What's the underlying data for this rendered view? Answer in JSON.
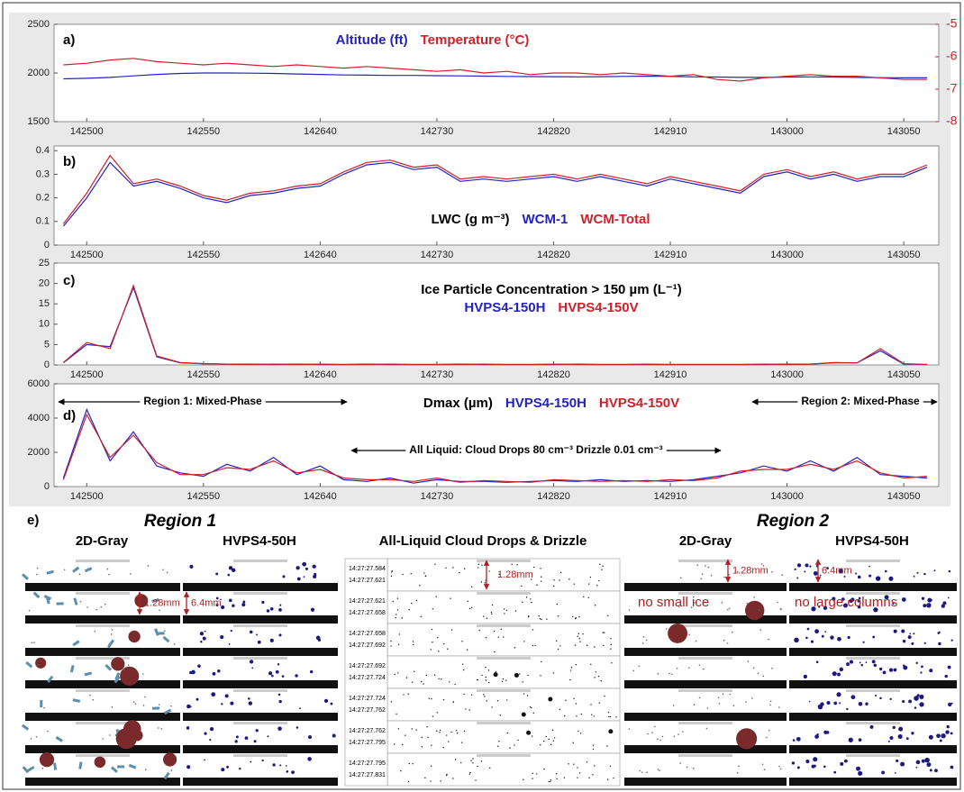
{
  "chart_data": [
    {
      "type": "line",
      "label": "a)",
      "x": [
        51890,
        51900,
        51910,
        51920,
        51930,
        51940,
        51950,
        51960,
        51970,
        51980,
        51990,
        52000,
        52010,
        52020,
        52030,
        52040,
        52050,
        52060,
        52070,
        52080,
        52090,
        52100,
        52110,
        52120,
        52130,
        52140,
        52150,
        52160,
        52170,
        52180,
        52190,
        52200,
        52210,
        52220,
        52230,
        52240,
        52250,
        52260
      ],
      "xlim": [
        51886,
        52265
      ],
      "xticks": [
        {
          "value": 51900,
          "label": "142500"
        },
        {
          "value": 51950,
          "label": "142550"
        },
        {
          "value": 52000,
          "label": "142640"
        },
        {
          "value": 52050,
          "label": "142730"
        },
        {
          "value": 52100,
          "label": "142820"
        },
        {
          "value": 52150,
          "label": "142910"
        },
        {
          "value": 52200,
          "label": "143000"
        },
        {
          "value": 52250,
          "label": "143050"
        }
      ],
      "ylim": [
        1500,
        2500
      ],
      "yticks": [
        1500,
        2000,
        2500
      ],
      "y2lim": [
        -8,
        -5
      ],
      "y2ticks": [
        -8,
        -7,
        -6,
        -5
      ],
      "y2color": "#d0202a",
      "series": [
        {
          "name": "Altitude (ft)",
          "color": "#2323c4",
          "values": [
            1940,
            1945,
            1955,
            1970,
            1985,
            1995,
            2000,
            2000,
            1998,
            1995,
            1990,
            1985,
            1980,
            1978,
            1975,
            1975,
            1972,
            1970,
            1968,
            1965,
            1963,
            1962,
            1960,
            1962,
            1965,
            1968,
            1965,
            1960,
            1958,
            1955,
            1955,
            1958,
            1960,
            1958,
            1955,
            1952,
            1950,
            1950
          ]
        },
        {
          "name": "Temperature (°C)",
          "color": "#d0202a",
          "axis": "y2",
          "values": [
            -6.25,
            -6.2,
            -6.1,
            -6.05,
            -6.15,
            -6.2,
            -6.25,
            -6.2,
            -6.25,
            -6.3,
            -6.25,
            -6.3,
            -6.35,
            -6.3,
            -6.35,
            -6.4,
            -6.45,
            -6.4,
            -6.5,
            -6.45,
            -6.55,
            -6.5,
            -6.5,
            -6.55,
            -6.5,
            -6.55,
            -6.6,
            -6.55,
            -6.7,
            -6.75,
            -6.65,
            -6.6,
            -6.55,
            -6.6,
            -6.6,
            -6.65,
            -6.7,
            -6.7
          ]
        }
      ]
    },
    {
      "type": "line",
      "label": "b)",
      "legend_title": "LWC (g m⁻³)",
      "x": [
        51890,
        51900,
        51910,
        51920,
        51930,
        51940,
        51950,
        51960,
        51970,
        51980,
        51990,
        52000,
        52010,
        52020,
        52030,
        52040,
        52050,
        52060,
        52070,
        52080,
        52090,
        52100,
        52110,
        52120,
        52130,
        52140,
        52150,
        52160,
        52170,
        52180,
        52190,
        52200,
        52210,
        52220,
        52230,
        52240,
        52250,
        52260
      ],
      "xlim": [
        51886,
        52265
      ],
      "xticks": [
        {
          "value": 51900,
          "label": "142500"
        },
        {
          "value": 51950,
          "label": "142550"
        },
        {
          "value": 52000,
          "label": "142640"
        },
        {
          "value": 52050,
          "label": "142730"
        },
        {
          "value": 52100,
          "label": "142820"
        },
        {
          "value": 52150,
          "label": "142910"
        },
        {
          "value": 52200,
          "label": "143000"
        },
        {
          "value": 52250,
          "label": "143050"
        }
      ],
      "ylim": [
        0,
        0.42
      ],
      "yticks": [
        0,
        0.1,
        0.2,
        0.3,
        0.4
      ],
      "series": [
        {
          "name": "WCM-1",
          "color": "#2323c4",
          "values": [
            0.08,
            0.2,
            0.35,
            0.25,
            0.27,
            0.24,
            0.2,
            0.18,
            0.21,
            0.22,
            0.24,
            0.25,
            0.3,
            0.34,
            0.35,
            0.32,
            0.33,
            0.27,
            0.28,
            0.27,
            0.28,
            0.29,
            0.27,
            0.29,
            0.27,
            0.25,
            0.28,
            0.26,
            0.24,
            0.22,
            0.29,
            0.31,
            0.28,
            0.3,
            0.27,
            0.29,
            0.29,
            0.33
          ]
        },
        {
          "name": "WCM-Total",
          "color": "#d0202a",
          "values": [
            0.09,
            0.22,
            0.38,
            0.26,
            0.28,
            0.25,
            0.21,
            0.19,
            0.22,
            0.23,
            0.25,
            0.26,
            0.31,
            0.35,
            0.36,
            0.33,
            0.34,
            0.28,
            0.29,
            0.28,
            0.29,
            0.3,
            0.28,
            0.3,
            0.28,
            0.26,
            0.29,
            0.27,
            0.25,
            0.23,
            0.3,
            0.32,
            0.29,
            0.31,
            0.28,
            0.3,
            0.3,
            0.34
          ]
        }
      ]
    },
    {
      "type": "line",
      "label": "c)",
      "title": "Ice Particle Concentration > 150 µm (L⁻¹)",
      "x": [
        51890,
        51900,
        51910,
        51920,
        51930,
        51940,
        51950,
        51960,
        51970,
        51980,
        51990,
        52000,
        52010,
        52020,
        52030,
        52040,
        52050,
        52060,
        52070,
        52080,
        52090,
        52100,
        52110,
        52120,
        52130,
        52140,
        52150,
        52160,
        52170,
        52180,
        52190,
        52200,
        52210,
        52220,
        52230,
        52240,
        52250,
        52260
      ],
      "xlim": [
        51886,
        52265
      ],
      "xticks": [
        {
          "value": 51900,
          "label": "142500"
        },
        {
          "value": 51950,
          "label": "142550"
        },
        {
          "value": 52000,
          "label": "142640"
        },
        {
          "value": 52050,
          "label": "142730"
        },
        {
          "value": 52100,
          "label": "142820"
        },
        {
          "value": 52150,
          "label": "142910"
        },
        {
          "value": 52200,
          "label": "143000"
        },
        {
          "value": 52250,
          "label": "143050"
        }
      ],
      "ylim": [
        0,
        25
      ],
      "yticks": [
        0,
        5,
        10,
        15,
        20,
        25
      ],
      "series": [
        {
          "name": "HVPS4-150H",
          "color": "#2323c4",
          "values": [
            0.5,
            5,
            4.5,
            19,
            2,
            0.5,
            0.3,
            0.2,
            0.2,
            0.1,
            0.2,
            0.1,
            0.1,
            0.2,
            0.1,
            0.1,
            0.1,
            0.2,
            0.1,
            0.1,
            0.1,
            0.1,
            0.2,
            0.1,
            0.1,
            0.1,
            0.1,
            0.1,
            0.1,
            0.1,
            0.1,
            0.2,
            0.2,
            0.5,
            0.5,
            3.5,
            0.2,
            0.1
          ]
        },
        {
          "name": "HVPS4-150V",
          "color": "#d0202a",
          "values": [
            0.6,
            5.5,
            4,
            19.5,
            2.2,
            0.6,
            0.3,
            0.2,
            0.1,
            0.2,
            0.1,
            0.2,
            0.1,
            0.1,
            0.2,
            0.1,
            0.1,
            0.1,
            0.2,
            0.1,
            0.1,
            0.2,
            0.1,
            0.1,
            0.1,
            0.2,
            0.1,
            0.1,
            0.1,
            0.1,
            0.2,
            0.1,
            0.2,
            0.6,
            0.5,
            4,
            0.3,
            0.1
          ]
        }
      ]
    },
    {
      "type": "line",
      "label": "d)",
      "legend_title": "Dmax (µm)",
      "x": [
        51890,
        51900,
        51910,
        51920,
        51930,
        51940,
        51950,
        51960,
        51970,
        51980,
        51990,
        52000,
        52010,
        52020,
        52030,
        52040,
        52050,
        52060,
        52070,
        52080,
        52090,
        52100,
        52110,
        52120,
        52130,
        52140,
        52150,
        52160,
        52170,
        52180,
        52190,
        52200,
        52210,
        52220,
        52230,
        52240,
        52250,
        52260
      ],
      "xlim": [
        51886,
        52265
      ],
      "xticks": [
        {
          "value": 51900,
          "label": "142500"
        },
        {
          "value": 51950,
          "label": "142550"
        },
        {
          "value": 52000,
          "label": "142640"
        },
        {
          "value": 52050,
          "label": "142730"
        },
        {
          "value": 52100,
          "label": "142820"
        },
        {
          "value": 52150,
          "label": "142910"
        },
        {
          "value": 52200,
          "label": "143000"
        },
        {
          "value": 52250,
          "label": "143050"
        }
      ],
      "ylim": [
        0,
        6000
      ],
      "yticks": [
        0,
        2000,
        4000,
        6000
      ],
      "annotations": [
        "Region 1: Mixed-Phase",
        "All Liquid: Cloud Drops 80 cm⁻³ Drizzle 0.01 cm⁻³",
        "Region 2: Mixed-Phase"
      ],
      "series": [
        {
          "name": "HVPS4-150H",
          "color": "#2323c4",
          "values": [
            500,
            4500,
            1500,
            3200,
            1200,
            800,
            600,
            1300,
            900,
            1700,
            700,
            1200,
            400,
            300,
            500,
            200,
            400,
            300,
            300,
            250,
            300,
            350,
            300,
            400,
            300,
            350,
            300,
            400,
            600,
            800,
            1200,
            900,
            1500,
            900,
            1700,
            700,
            600,
            500
          ]
        },
        {
          "name": "HVPS4-150V",
          "color": "#d0202a",
          "values": [
            400,
            4200,
            1700,
            3000,
            1400,
            700,
            700,
            1100,
            1000,
            1500,
            800,
            1000,
            500,
            400,
            400,
            300,
            500,
            250,
            350,
            300,
            250,
            400,
            350,
            300,
            350,
            300,
            400,
            350,
            500,
            900,
            1000,
            1000,
            1300,
            1000,
            1500,
            800,
            500,
            600
          ]
        }
      ]
    }
  ],
  "panel_e": {
    "label": "e)",
    "region_1": {
      "title": "Region 1",
      "gray": "2D-Gray",
      "hvps": "HVPS4-50H",
      "gray_scale": "1.28mm",
      "hvps_scale": "6.4mm"
    },
    "liquid": {
      "title": "All-Liquid Cloud Drops & Drizzle",
      "scale": "1.28mm",
      "timestamps": [
        [
          "14:27:27.584",
          "14:27:27.621"
        ],
        [
          "14:27:27.621",
          "14:27:27.658"
        ],
        [
          "14:27:27.658",
          "14:27:27.692"
        ],
        [
          "14:27:27.692",
          "14:27:27.724"
        ],
        [
          "14:27:27.724",
          "14:27:27.762"
        ],
        [
          "14:27:27.762",
          "14:27:27.795"
        ],
        [
          "14:27:27.795",
          "14:27:27.831"
        ]
      ]
    },
    "region_2": {
      "title": "Region 2",
      "gray": "2D-Gray",
      "hvps": "HVPS4-50H",
      "gray_scale": "1.28mm",
      "hvps_scale": "6.4mm",
      "gray_note": "no small ice",
      "hvps_note": "no large columns"
    }
  }
}
